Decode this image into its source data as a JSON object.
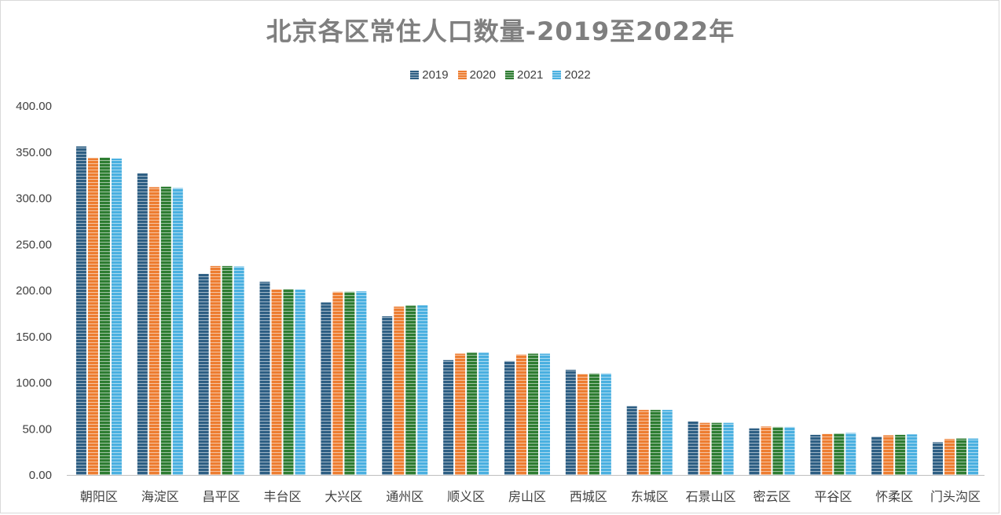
{
  "chart_data": {
    "type": "bar",
    "title": "北京各区常住人口数量-2019至2022年",
    "xlabel": "",
    "ylabel": "",
    "ylim": [
      0,
      400
    ],
    "yticks": [
      "0.00",
      "50.00",
      "100.00",
      "150.00",
      "200.00",
      "250.00",
      "300.00",
      "350.00",
      "400.00"
    ],
    "grid": false,
    "legend_position": "top",
    "categories": [
      "朝阳区",
      "海淀区",
      "昌平区",
      "丰台区",
      "大兴区",
      "通州区",
      "顺义区",
      "房山区",
      "西城区",
      "东城区",
      "石景山区",
      "密云区",
      "平谷区",
      "怀柔区",
      "门头沟区"
    ],
    "series": [
      {
        "name": "2019",
        "color": "#2e5f84",
        "values": [
          356.2,
          327.0,
          218.0,
          209.5,
          187.0,
          172.0,
          124.5,
          123.5,
          114.0,
          74.5,
          58.0,
          50.5,
          43.5,
          41.5,
          35.5
        ]
      },
      {
        "name": "2020",
        "color": "#ed7d31",
        "values": [
          343.5,
          312.0,
          226.5,
          201.0,
          198.5,
          182.5,
          131.5,
          130.5,
          109.5,
          70.5,
          56.5,
          52.5,
          44.5,
          43.0,
          39.0
        ]
      },
      {
        "name": "2021",
        "color": "#2e7d32",
        "values": [
          344.0,
          312.5,
          226.5,
          201.5,
          198.5,
          183.5,
          132.5,
          131.5,
          110.0,
          70.5,
          56.5,
          52.0,
          45.0,
          43.5,
          39.5
        ]
      },
      {
        "name": "2022",
        "color": "#4ab0e0",
        "values": [
          343.0,
          311.0,
          226.0,
          201.0,
          199.0,
          184.0,
          132.5,
          131.5,
          110.0,
          70.5,
          56.5,
          52.0,
          45.5,
          44.0,
          39.5
        ]
      }
    ]
  }
}
